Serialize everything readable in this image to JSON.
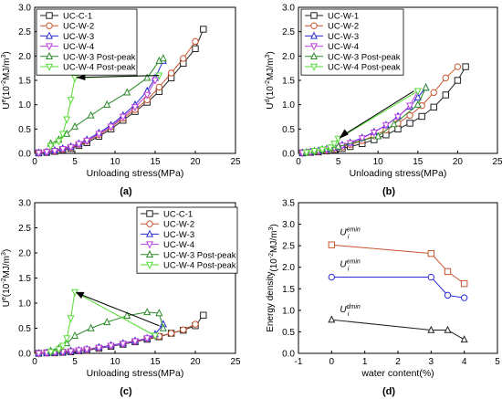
{
  "colors": {
    "black": "#222222",
    "orange": "#c8552f",
    "blue": "#2a2ad6",
    "magenta": "#c040e0",
    "green": "#2a8a2a",
    "light_green": "#55dd33"
  },
  "chart_data": [
    {
      "type": "line",
      "panel_label": "(a)",
      "xlabel": "Unloading stress(MPa)",
      "ylabel": "U_e (10^-2MJ/m^3)",
      "ylabel_base": "U",
      "ylabel_sup": "e",
      "ylabel_unit": "(10",
      "ylabel_exp": "-2",
      "ylabel_tail": "MJ/m",
      "ylabel_cube": "3",
      "ylabel_close": ")",
      "xlim": [
        0,
        25
      ],
      "ylim": [
        0,
        3.0
      ],
      "xticks": [
        "0",
        "5",
        "10",
        "15",
        "20",
        "25"
      ],
      "yticks": [
        "0.0",
        "0.5",
        "1.0",
        "1.5",
        "2.0",
        "2.5",
        "3.0"
      ],
      "grid": false,
      "legend_position": "top-left",
      "series": [
        {
          "name": "UC-C-1",
          "color": "black",
          "marker": "square",
          "x": [
            0.5,
            1.5,
            2.5,
            3.5,
            4.5,
            5.5,
            6.5,
            8,
            9.5,
            11,
            12.5,
            14,
            15.5,
            17,
            18.5,
            20,
            21
          ],
          "y": [
            0.01,
            0.02,
            0.04,
            0.07,
            0.1,
            0.16,
            0.22,
            0.35,
            0.5,
            0.68,
            0.86,
            1.05,
            1.27,
            1.55,
            1.85,
            2.15,
            2.55
          ]
        },
        {
          "name": "UC-W-2",
          "color": "orange",
          "marker": "circle",
          "x": [
            0.5,
            1.5,
            2.5,
            3.5,
            4.5,
            5.5,
            6.5,
            8,
            9.5,
            11,
            12.5,
            14,
            15.5,
            17,
            18.5,
            20
          ],
          "y": [
            0.01,
            0.03,
            0.05,
            0.08,
            0.12,
            0.18,
            0.25,
            0.38,
            0.54,
            0.72,
            0.9,
            1.1,
            1.36,
            1.65,
            1.95,
            2.3
          ]
        },
        {
          "name": "UC-W-3",
          "color": "blue",
          "marker": "triangle-up",
          "x": [
            0.5,
            1.5,
            2.5,
            3.5,
            4.5,
            5.5,
            6.5,
            8,
            9.5,
            11,
            12.5,
            14,
            15,
            16
          ],
          "y": [
            0.01,
            0.03,
            0.06,
            0.1,
            0.14,
            0.2,
            0.28,
            0.42,
            0.58,
            0.78,
            1.0,
            1.28,
            1.55,
            1.9
          ]
        },
        {
          "name": "UC-W-4",
          "color": "magenta",
          "marker": "triangle-down",
          "x": [
            0.5,
            1.5,
            2.5,
            3.5,
            4.5,
            5.5,
            6.5,
            8,
            9.5,
            11,
            12.5,
            14,
            15
          ],
          "y": [
            0.01,
            0.03,
            0.05,
            0.09,
            0.13,
            0.19,
            0.26,
            0.4,
            0.55,
            0.75,
            0.95,
            1.2,
            1.5
          ]
        },
        {
          "name": "UC-W-3 Post-peak",
          "color": "green",
          "marker": "triangle-up",
          "x": [
            2,
            3,
            4,
            5,
            7,
            9,
            11.5,
            14,
            15.5,
            16
          ],
          "y": [
            0.2,
            0.28,
            0.4,
            0.55,
            0.78,
            1.0,
            1.25,
            1.55,
            1.9,
            1.95
          ]
        },
        {
          "name": "UC-W-4 Post-peak",
          "color": "light_green",
          "marker": "triangle-down",
          "x": [
            2,
            3,
            3.5,
            4,
            4.5,
            5,
            15.5
          ],
          "y": [
            0.15,
            0.25,
            0.4,
            0.7,
            1.1,
            1.55,
            1.6
          ]
        }
      ]
    },
    {
      "type": "line",
      "panel_label": "(b)",
      "xlabel": "Unloading stress(MPa)",
      "ylabel": "U_d (10^-2MJ/m^3)",
      "ylabel_base": "U",
      "ylabel_sup": "d",
      "ylabel_unit": "(10",
      "ylabel_exp": "-2",
      "ylabel_tail": "MJ/m",
      "ylabel_cube": "3",
      "ylabel_close": ")",
      "xlim": [
        0,
        25
      ],
      "ylim": [
        0,
        3.0
      ],
      "xticks": [
        "0",
        "5",
        "10",
        "15",
        "20",
        "25"
      ],
      "yticks": [
        "0.0",
        "0.5",
        "1.0",
        "1.5",
        "2.0",
        "2.5",
        "3.0"
      ],
      "grid": false,
      "legend_position": "top-left",
      "series": [
        {
          "name": "UC-W-1",
          "color": "black",
          "marker": "square",
          "x": [
            0.5,
            1.5,
            2.5,
            3.5,
            4.5,
            5.5,
            6.5,
            8,
            9.5,
            11,
            12.5,
            14,
            15.5,
            17,
            18.5,
            20,
            21
          ],
          "y": [
            0.01,
            0.02,
            0.03,
            0.05,
            0.07,
            0.1,
            0.14,
            0.2,
            0.28,
            0.38,
            0.5,
            0.62,
            0.76,
            0.95,
            1.2,
            1.5,
            1.78
          ]
        },
        {
          "name": "UC-W-2",
          "color": "orange",
          "marker": "circle",
          "x": [
            0.5,
            1.5,
            2.5,
            3.5,
            4.5,
            5.5,
            6.5,
            8,
            9.5,
            11,
            12.5,
            14,
            15.5,
            17,
            18.5,
            20
          ],
          "y": [
            0.01,
            0.02,
            0.04,
            0.06,
            0.09,
            0.13,
            0.18,
            0.26,
            0.36,
            0.48,
            0.62,
            0.78,
            0.98,
            1.25,
            1.55,
            1.78
          ]
        },
        {
          "name": "UC-W-3",
          "color": "blue",
          "marker": "triangle-up",
          "x": [
            0.5,
            1.5,
            2.5,
            3.5,
            4.5,
            5.5,
            6.5,
            8,
            9.5,
            11,
            12.5,
            14,
            15,
            16
          ],
          "y": [
            0.01,
            0.03,
            0.05,
            0.08,
            0.12,
            0.17,
            0.22,
            0.32,
            0.44,
            0.58,
            0.76,
            0.96,
            1.15,
            1.35
          ]
        },
        {
          "name": "UC-W-4",
          "color": "magenta",
          "marker": "triangle-down",
          "x": [
            0.5,
            1.5,
            2.5,
            3.5,
            4.5,
            5.5,
            6.5,
            8,
            9.5,
            11,
            12.5,
            14,
            15
          ],
          "y": [
            0.01,
            0.03,
            0.05,
            0.08,
            0.11,
            0.16,
            0.21,
            0.31,
            0.43,
            0.58,
            0.75,
            0.98,
            1.28
          ]
        },
        {
          "name": "UC-W-3 Post-peak",
          "color": "green",
          "marker": "triangle-up",
          "x": [
            1,
            2,
            3,
            4,
            5,
            10,
            12,
            15,
            16
          ],
          "y": [
            0.02,
            0.05,
            0.08,
            0.11,
            0.14,
            0.35,
            0.6,
            1.0,
            1.35
          ]
        },
        {
          "name": "UC-W-4 Post-peak",
          "color": "light_green",
          "marker": "triangle-down",
          "x": [
            1,
            2,
            3,
            4,
            4.5,
            5,
            15
          ],
          "y": [
            0.02,
            0.05,
            0.08,
            0.12,
            0.2,
            0.3,
            1.28
          ]
        }
      ]
    },
    {
      "type": "line",
      "panel_label": "(c)",
      "xlabel": "Unloading stress(MPa)",
      "ylabel": "U_e (10^-2MJ/m^3)",
      "ylabel_base": "U",
      "ylabel_sup": "e",
      "ylabel_unit": "(10",
      "ylabel_exp": "-2",
      "ylabel_tail": "MJ/m",
      "ylabel_cube": "3",
      "ylabel_close": ")",
      "xlim": [
        0,
        25
      ],
      "ylim": [
        0,
        3.0
      ],
      "xticks": [
        "0",
        "5",
        "10",
        "15",
        "20",
        "25"
      ],
      "yticks": [
        "0.0",
        "0.5",
        "1.0",
        "1.5",
        "2.0",
        "2.5",
        "3.0"
      ],
      "grid": false,
      "legend_position": "top-right",
      "series": [
        {
          "name": "UC-C-1",
          "color": "black",
          "marker": "square",
          "x": [
            0.5,
            1.5,
            2.5,
            3.5,
            4.5,
            5.5,
            6.5,
            8,
            9.5,
            11,
            12.5,
            14,
            15.5,
            17,
            18.5,
            20,
            21
          ],
          "y": [
            0.0,
            0.01,
            0.01,
            0.02,
            0.03,
            0.05,
            0.06,
            0.1,
            0.14,
            0.18,
            0.23,
            0.28,
            0.33,
            0.4,
            0.46,
            0.55,
            0.76
          ]
        },
        {
          "name": "UC-W-2",
          "color": "orange",
          "marker": "circle",
          "x": [
            0.5,
            1.5,
            2.5,
            3.5,
            4.5,
            5.5,
            6.5,
            8,
            9.5,
            11,
            12.5,
            14,
            15.5,
            17,
            18.5,
            20
          ],
          "y": [
            0.0,
            0.01,
            0.02,
            0.03,
            0.04,
            0.05,
            0.07,
            0.11,
            0.15,
            0.19,
            0.24,
            0.29,
            0.34,
            0.4,
            0.47,
            0.58
          ]
        },
        {
          "name": "UC-W-3",
          "color": "blue",
          "marker": "triangle-up",
          "x": [
            0.5,
            1.5,
            2.5,
            3.5,
            4.5,
            5.5,
            6.5,
            8,
            9.5,
            11,
            12.5,
            14,
            15,
            16
          ],
          "y": [
            0.0,
            0.01,
            0.02,
            0.03,
            0.05,
            0.06,
            0.08,
            0.12,
            0.16,
            0.2,
            0.25,
            0.3,
            0.38,
            0.58
          ]
        },
        {
          "name": "UC-W-4",
          "color": "magenta",
          "marker": "triangle-down",
          "x": [
            0.5,
            1.5,
            2.5,
            3.5,
            4.5,
            5.5,
            6.5,
            8,
            9.5,
            11,
            12.5,
            14,
            15
          ],
          "y": [
            0.0,
            0.01,
            0.02,
            0.03,
            0.04,
            0.06,
            0.08,
            0.11,
            0.15,
            0.19,
            0.24,
            0.3,
            0.34
          ]
        },
        {
          "name": "UC-W-3 Post-peak",
          "color": "green",
          "marker": "triangle-up",
          "x": [
            2,
            3,
            4,
            5,
            7,
            9,
            11.5,
            14,
            15.5,
            16
          ],
          "y": [
            0.05,
            0.1,
            0.2,
            0.35,
            0.5,
            0.62,
            0.75,
            0.82,
            0.8,
            0.5
          ]
        },
        {
          "name": "UC-W-4 Post-peak",
          "color": "light_green",
          "marker": "triangle-down",
          "x": [
            2,
            3,
            3.5,
            4,
            4.5,
            5,
            15
          ],
          "y": [
            0.03,
            0.08,
            0.15,
            0.3,
            0.7,
            1.22,
            0.35
          ]
        }
      ]
    },
    {
      "type": "line",
      "panel_label": "(d)",
      "xlabel": "water content(%)",
      "ylabel": "Energy density(10^-2MJ/m^3)",
      "ylabel_base": "Energy density",
      "ylabel_sup": "",
      "ylabel_unit": "(10",
      "ylabel_exp": "-2",
      "ylabel_tail": "MJ/m",
      "ylabel_cube": "3",
      "ylabel_close": ")",
      "xlim": [
        -1,
        5
      ],
      "ylim": [
        0,
        3.5
      ],
      "xticks": [
        "-1",
        "0",
        "1",
        "2",
        "3",
        "4",
        "5"
      ],
      "yticks": [
        "0.0",
        "0.5",
        "1.0",
        "1.5",
        "2.0",
        "2.5",
        "3.0",
        "3.5"
      ],
      "grid": false,
      "annotations": [
        {
          "text": "U",
          "sub": "i",
          "sup": "dmin",
          "x": 0.0,
          "y": 0.95
        },
        {
          "text": "U",
          "sub": "i",
          "sup": "emin",
          "x": 0.0,
          "y": 2.0
        },
        {
          "text": "U",
          "sub": "i",
          "sup": "emin",
          "x": 0.0,
          "y": 2.75
        }
      ],
      "series": [
        {
          "name": "",
          "color": "black",
          "marker": "triangle-up",
          "x": [
            0,
            3,
            3.5,
            4
          ],
          "y": [
            0.78,
            0.54,
            0.54,
            0.32
          ]
        },
        {
          "name": "",
          "color": "blue",
          "marker": "circle",
          "x": [
            0,
            3,
            3.5,
            4
          ],
          "y": [
            1.77,
            1.77,
            1.35,
            1.29
          ]
        },
        {
          "name": "",
          "color": "orange",
          "marker": "square",
          "x": [
            0,
            3,
            3.5,
            4
          ],
          "y": [
            2.52,
            2.32,
            1.9,
            1.62
          ]
        }
      ]
    }
  ]
}
